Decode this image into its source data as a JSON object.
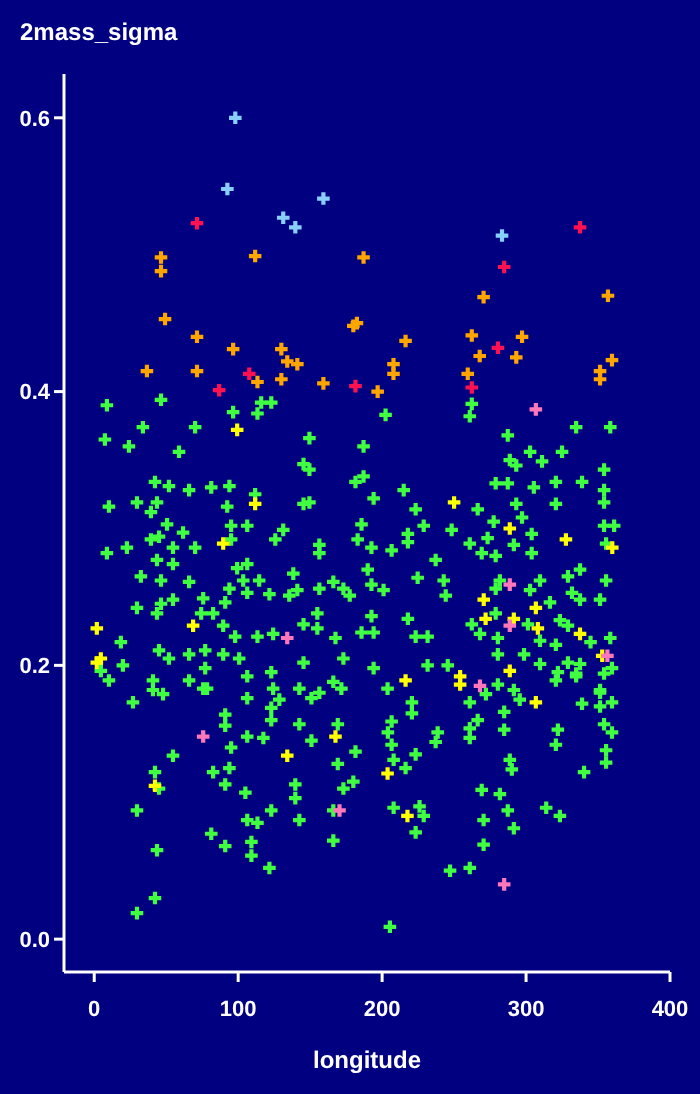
{
  "chart_data": {
    "type": "scatter",
    "title": "2mass_sigma",
    "xlabel": "longitude",
    "marker": "cross",
    "xlim": [
      -21,
      400
    ],
    "ylim": [
      -0.024,
      0.632
    ],
    "xticks": [
      0,
      100,
      200,
      300,
      400
    ],
    "yticks": [
      {
        "value": 0,
        "label": "0.0"
      },
      {
        "value": 0.2,
        "label": "0.2"
      },
      {
        "value": 0.4,
        "label": "0.4"
      },
      {
        "value": 0.6,
        "label": "0.6"
      }
    ],
    "series": [
      {
        "color": "#40ff40",
        "x": [
          8.8,
          46.4,
          96.5,
          116,
          123,
          113.4,
          202.4,
          262.3,
          260.9,
          33.8,
          70.1,
          7.4,
          24.1,
          58.9,
          149.5,
          187.1,
          145.4,
          149.5,
          181.5,
          187.1,
          42.2,
          51.9,
          65.9,
          81.3,
          93.9,
          111.8,
          194.1,
          29.7,
          10.2,
          43.6,
          39.4,
          92.4,
          149.5,
          145.4,
          50.6,
          61.7,
          95.1,
          106.3,
          131.3,
          185.7,
          39.4,
          45,
          22.7,
          54.7,
          70.1,
          95.1,
          125.8,
          156.4,
          183,
          8.8,
          43.6,
          54.7,
          99.3,
          106.3,
          156.4,
          192.6,
          190,
          32.4,
          46.4,
          65.9,
          93.9,
          103.5,
          114.6,
          138.3,
          156.4,
          166.1,
          173.1,
          192.6,
          75.7,
          91,
          106.3,
          121.7,
          135.5,
          141.1,
          177.5,
          29.7,
          46.4,
          54.7,
          43.6,
          74.3,
          82.6,
          155,
          192.6,
          18.5,
          45,
          51.9,
          89.6,
          97.9,
          113.4,
          124.3,
          145.4,
          155,
          167.6,
          185.7,
          194.1,
          77.1,
          89.6,
          100.7,
          145.4,
          173.1,
          19.9,
          65.9,
          10.2,
          40.8,
          77.1,
          106.3,
          123,
          166.1,
          194.1,
          47.8,
          78.4,
          124.3,
          142.5,
          156.4,
          171.7,
          106.3,
          150.9,
          334.8,
          358.5,
          287.3,
          302.8,
          325,
          288.7,
          293.2,
          311.1,
          354.2,
          278.9,
          287.3,
          305.4,
          320.7,
          338.9,
          354.2,
          215,
          293.2,
          320.7,
          354.2,
          223.3,
          266.4,
          228.9,
          277.5,
          297.2,
          354.2,
          361.2,
          248.3,
          273.3,
          217.9,
          303.9,
          260.9,
          217.9,
          291.5,
          355.6,
          206.6,
          237.2,
          269.2,
          278.9,
          303.9,
          337.5,
          309.7,
          329.1,
          355.6,
          201,
          224.7,
          242.8,
          281.8,
          331.9,
          244.2,
          278.9,
          302.8,
          316.6,
          351.4,
          337.5,
          217.9,
          262.3,
          278.9,
          301.3,
          323.5,
          329.1,
          223.3,
          231.6,
          268,
          280.4,
          309.7,
          344.8,
          358.5,
          280.4,
          298.6,
          320.7,
          329.1,
          337.5,
          359.7,
          231.6,
          245.6,
          309.7,
          280.4,
          320.7,
          334.8,
          354.2,
          351.4,
          203.8,
          272.1,
          291.5,
          4.6,
          40.8,
          65.9,
          75.7,
          26.9,
          91,
          91,
          128.6,
          123,
          106.3,
          123,
          117.5,
          142.5,
          150.9,
          169.2,
          181.5,
          54.7,
          82.6,
          95.1,
          93.9,
          91,
          105,
          42.2,
          45,
          29.7,
          43.6,
          42.2,
          29.7,
          81.3,
          91,
          106.3,
          113.4,
          109.2,
          109.2,
          123,
          121.7,
          139.7,
          139.7,
          142.5,
          166.1,
          166.1,
          173.1,
          180,
          169.2,
          205.4,
          206.6,
          204,
          206.6,
          208,
          216.3,
          220.7,
          220.7,
          223.3,
          237.2,
          238.6,
          208,
          226,
          228.9,
          223.3,
          247.2,
          260.9,
          270.5,
          270.5,
          269.2,
          281.8,
          287.3,
          291.5,
          288.7,
          290.1,
          284.8,
          284.8,
          260.9,
          260.9,
          266.4,
          260.9,
          295.6,
          314,
          323.5,
          320.7,
          322.1,
          340.3,
          338.9,
          351.4,
          351.4,
          359.7,
          354.2,
          359.7,
          355.6,
          355.6,
          334.8,
          322.1
        ],
        "values": [
          0.39,
          0.394,
          0.385,
          0.392,
          0.392,
          0.384,
          0.383,
          0.391,
          0.382,
          0.374,
          0.374,
          0.365,
          0.36,
          0.356,
          0.366,
          0.36,
          0.347,
          0.343,
          0.334,
          0.338,
          0.334,
          0.331,
          0.328,
          0.33,
          0.331,
          0.325,
          0.322,
          0.319,
          0.316,
          0.319,
          0.312,
          0.316,
          0.319,
          0.318,
          0.303,
          0.297,
          0.302,
          0.302,
          0.299,
          0.303,
          0.292,
          0.294,
          0.286,
          0.286,
          0.286,
          0.292,
          0.292,
          0.288,
          0.292,
          0.282,
          0.277,
          0.274,
          0.271,
          0.274,
          0.282,
          0.286,
          0.27,
          0.265,
          0.262,
          0.261,
          0.256,
          0.262,
          0.262,
          0.267,
          0.256,
          0.261,
          0.256,
          0.259,
          0.249,
          0.246,
          0.253,
          0.252,
          0.251,
          0.255,
          0.251,
          0.242,
          0.245,
          0.248,
          0.238,
          0.238,
          0.238,
          0.238,
          0.236,
          0.217,
          0.211,
          0.205,
          0.229,
          0.221,
          0.221,
          0.223,
          0.23,
          0.227,
          0.22,
          0.224,
          0.224,
          0.211,
          0.208,
          0.205,
          0.202,
          0.205,
          0.2,
          0.208,
          0.189,
          0.189,
          0.198,
          0.192,
          0.195,
          0.188,
          0.198,
          0.179,
          0.183,
          0.183,
          0.183,
          0.18,
          0.183,
          0.176,
          0.176,
          0.374,
          0.374,
          0.368,
          0.356,
          0.356,
          0.35,
          0.346,
          0.349,
          0.343,
          0.333,
          0.333,
          0.33,
          0.334,
          0.334,
          0.328,
          0.328,
          0.318,
          0.318,
          0.319,
          0.314,
          0.314,
          0.302,
          0.305,
          0.308,
          0.302,
          0.302,
          0.299,
          0.293,
          0.296,
          0.296,
          0.289,
          0.29,
          0.288,
          0.289,
          0.284,
          0.277,
          0.282,
          0.28,
          0.282,
          0.27,
          0.262,
          0.265,
          0.262,
          0.255,
          0.264,
          0.262,
          0.262,
          0.253,
          0.251,
          0.256,
          0.255,
          0.246,
          0.248,
          0.248,
          0.234,
          0.23,
          0.238,
          0.23,
          0.233,
          0.229,
          0.221,
          0.221,
          0.223,
          0.22,
          0.218,
          0.217,
          0.22,
          0.208,
          0.208,
          0.215,
          0.202,
          0.201,
          0.198,
          0.2,
          0.2,
          0.201,
          0.186,
          0.189,
          0.194,
          0.194,
          0.18,
          0.183,
          0.179,
          0.182,
          0.196,
          0.182,
          0.189,
          0.183,
          0.173,
          0.164,
          0.156,
          0.175,
          0.169,
          0.148,
          0.16,
          0.147,
          0.157,
          0.145,
          0.157,
          0.137,
          0.134,
          0.122,
          0.14,
          0.125,
          0.113,
          0.107,
          0.122,
          0.11,
          0.094,
          0.065,
          0.03,
          0.019,
          0.077,
          0.068,
          0.087,
          0.085,
          0.071,
          0.061,
          0.094,
          0.052,
          0.113,
          0.103,
          0.087,
          0.072,
          0.094,
          0.11,
          0.115,
          0.128,
          0.009,
          0.159,
          0.151,
          0.142,
          0.131,
          0.125,
          0.173,
          0.165,
          0.135,
          0.144,
          0.151,
          0.096,
          0.097,
          0.09,
          0.078,
          0.05,
          0.052,
          0.087,
          0.069,
          0.109,
          0.106,
          0.094,
          0.081,
          0.131,
          0.124,
          0.153,
          0.166,
          0.147,
          0.154,
          0.16,
          0.173,
          0.175,
          0.096,
          0.09,
          0.142,
          0.153,
          0.122,
          0.172,
          0.17,
          0.182,
          0.173,
          0.157,
          0.151,
          0.138,
          0.129,
          0.192,
          0.195
        ]
      },
      {
        "color": "#ffff00",
        "x": [
          99.3,
          111.8,
          89.6,
          1.8,
          4.6,
          1.8,
          68.7,
          250,
          288.7,
          327.7,
          359.9,
          270.6,
          291.5,
          271.9,
          306.8,
          308.2,
          337.5,
          352.9,
          254.2,
          254.2,
          216.3,
          288.7,
          306.8,
          167.6,
          134.1,
          42.2,
          203.8,
          217.6
        ],
        "values": [
          0.372,
          0.318,
          0.289,
          0.227,
          0.205,
          0.202,
          0.229,
          0.319,
          0.3,
          0.292,
          0.286,
          0.248,
          0.234,
          0.234,
          0.242,
          0.227,
          0.223,
          0.207,
          0.192,
          0.186,
          0.189,
          0.196,
          0.173,
          0.148,
          0.134,
          0.112,
          0.121,
          0.09
        ]
      },
      {
        "color": "#ff77bb",
        "x": [
          306.8,
          134.1,
          288.7,
          288.7,
          268,
          356.5,
          75.7,
          170.4,
          284.8
        ],
        "values": [
          0.387,
          0.22,
          0.259,
          0.229,
          0.185,
          0.207,
          0.148,
          0.094,
          0.04
        ]
      },
      {
        "color": "#ffa500",
        "x": [
          46.4,
          46.4,
          111.8,
          187.1,
          49.2,
          356.9,
          270.5,
          180,
          182.5,
          216.3,
          71.4,
          262.3,
          297.2,
          96.5,
          130,
          267.8,
          293.2,
          134.1,
          141.1,
          359.7,
          207.9,
          36.6,
          71.4,
          207.9,
          259.5,
          351.4,
          351.4,
          113.4,
          130,
          159.2,
          196.9
        ],
        "values": [
          0.498,
          0.488,
          0.499,
          0.498,
          0.453,
          0.47,
          0.469,
          0.448,
          0.45,
          0.437,
          0.44,
          0.441,
          0.44,
          0.431,
          0.431,
          0.426,
          0.425,
          0.422,
          0.42,
          0.423,
          0.42,
          0.415,
          0.415,
          0.413,
          0.413,
          0.415,
          0.409,
          0.407,
          0.409,
          0.406,
          0.4
        ]
      },
      {
        "color": "#ff1050",
        "x": [
          71.4,
          337.5,
          284.8,
          280.5,
          107.7,
          86.8,
          181.5,
          262.3
        ],
        "values": [
          0.523,
          0.52,
          0.491,
          0.432,
          0.413,
          0.401,
          0.404,
          0.403
        ]
      },
      {
        "color": "#87cefa",
        "x": [
          98,
          92.5,
          131.3,
          139.7,
          159.2,
          283.3
        ],
        "values": [
          0.6,
          0.548,
          0.527,
          0.52,
          0.541,
          0.514
        ]
      }
    ]
  }
}
